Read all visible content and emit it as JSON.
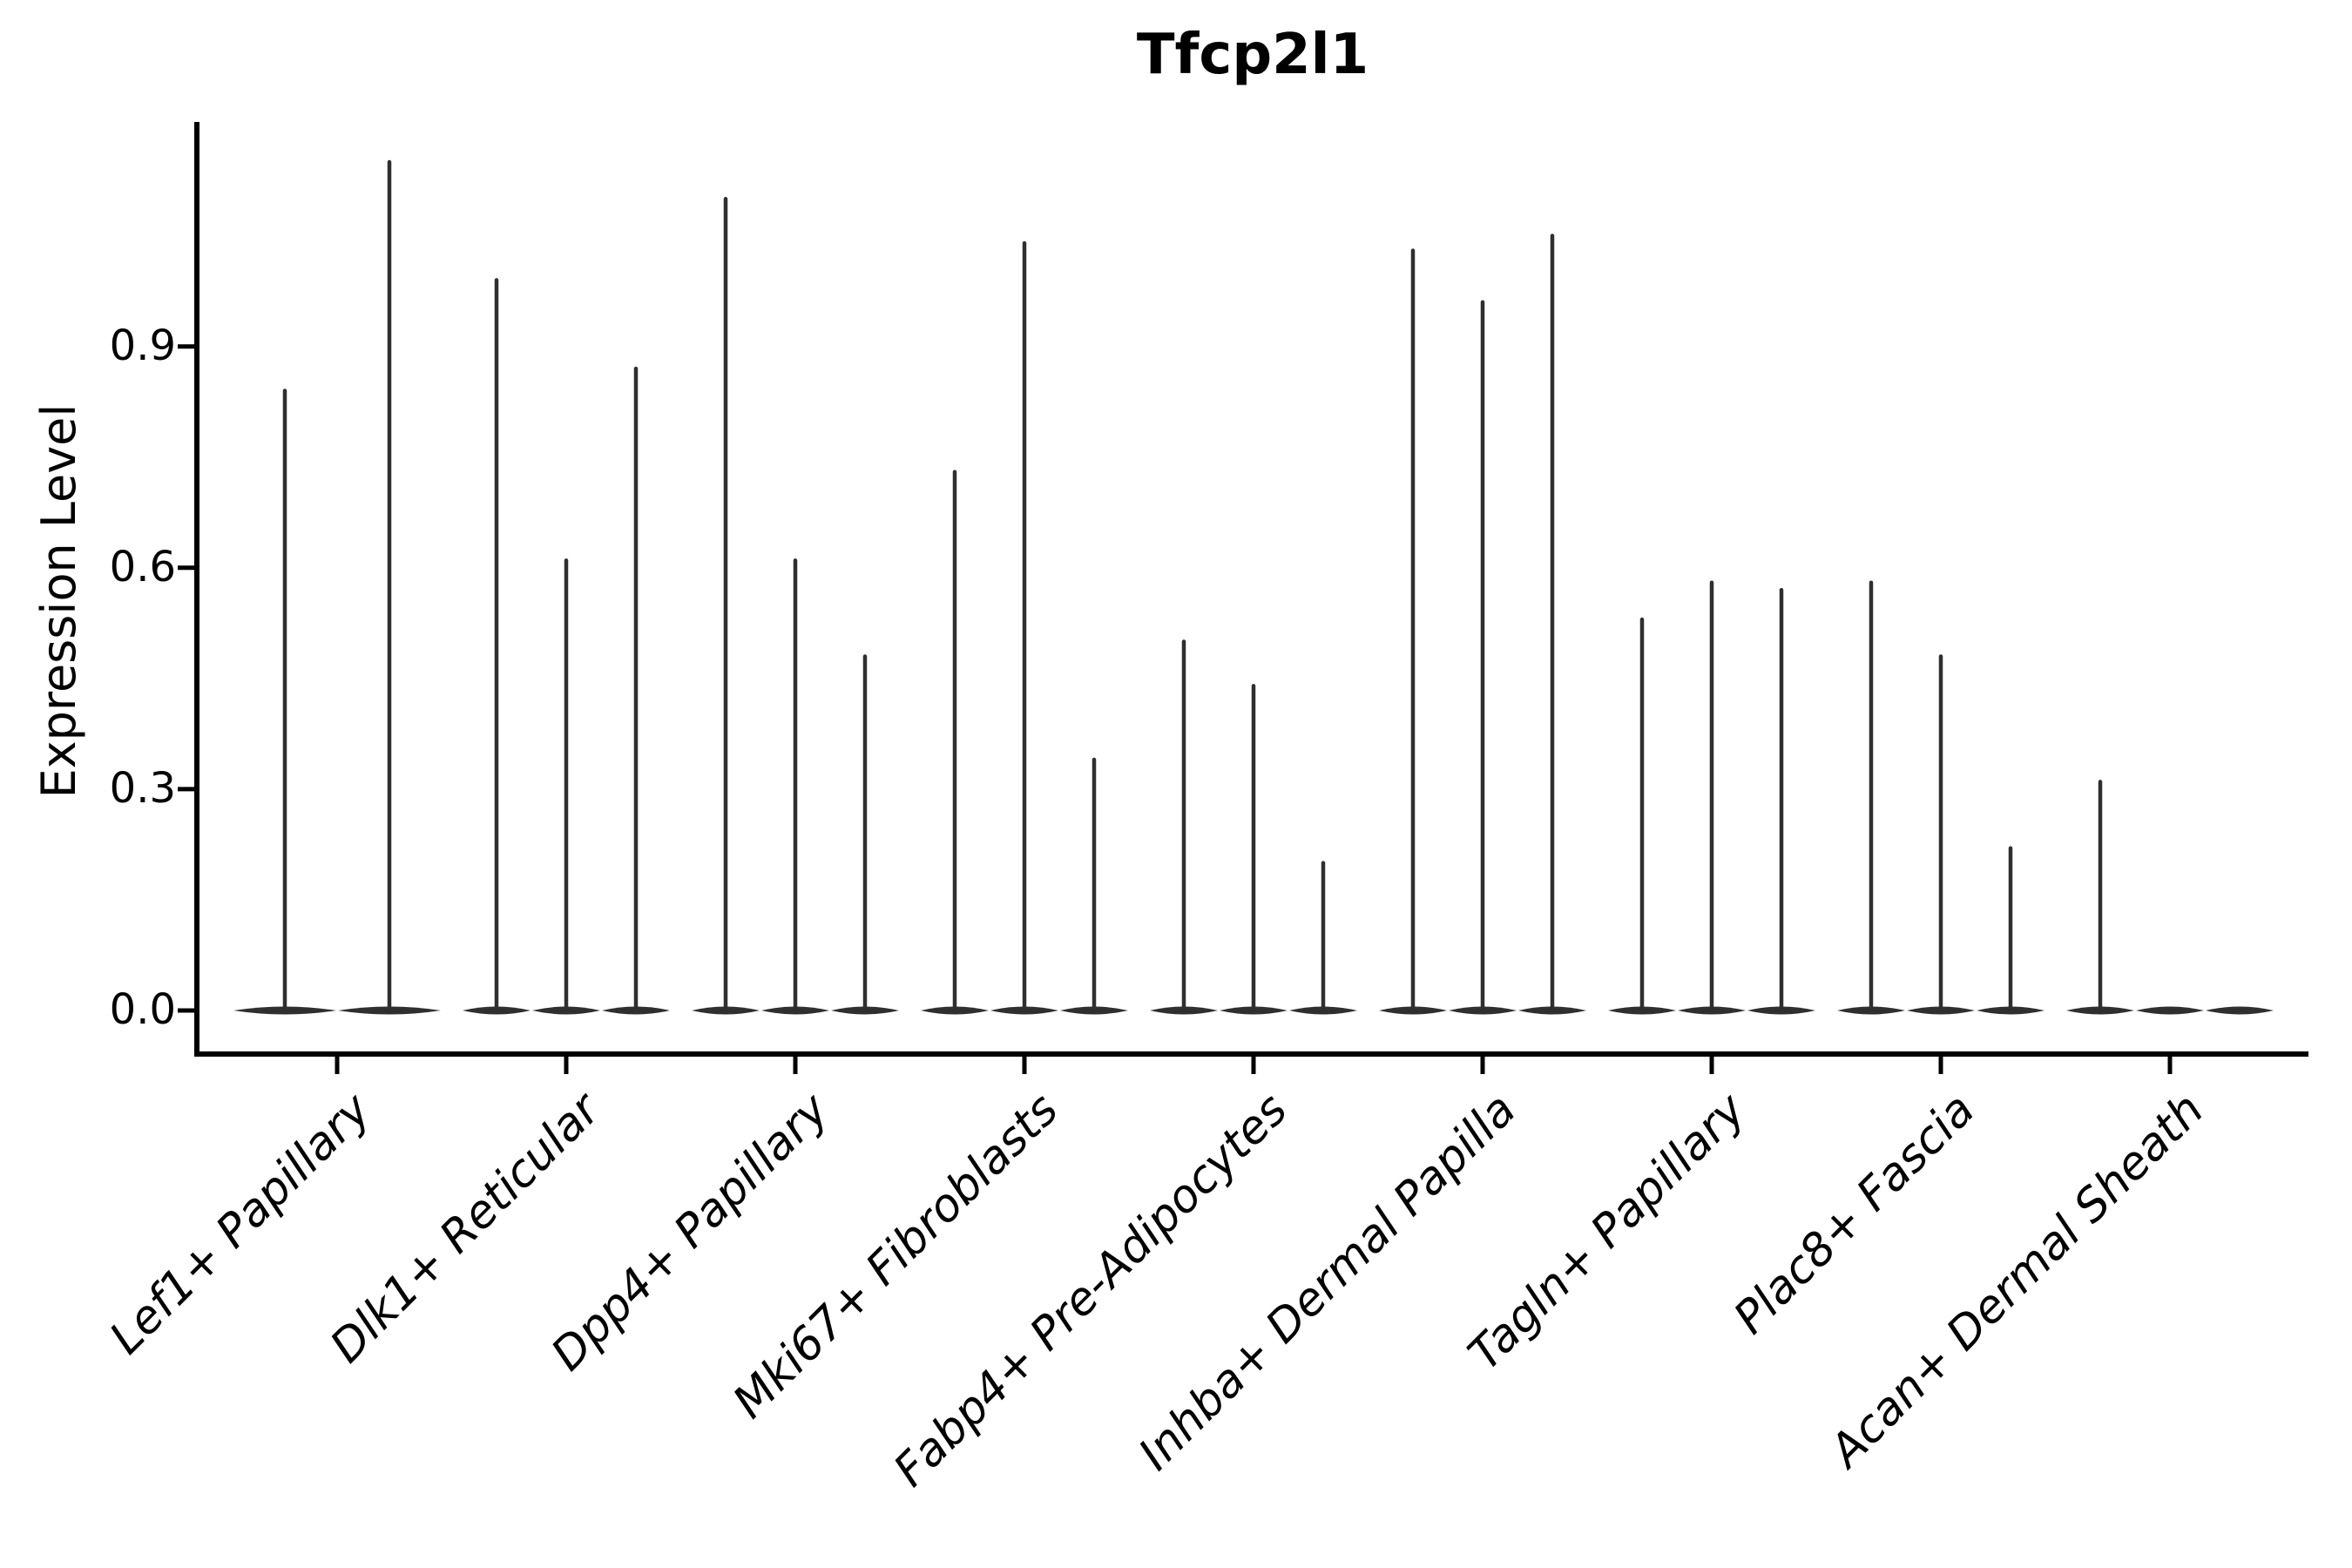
{
  "title": "Tfcp2l1",
  "y_axis": {
    "label": "Expression Level",
    "ticks": [
      "0.0",
      "0.3",
      "0.6",
      "0.9"
    ]
  },
  "chart_data": {
    "type": "violin",
    "title": "Tfcp2l1",
    "xlabel": "",
    "ylabel": "Expression Level",
    "ylim": [
      0,
      1.2
    ],
    "ytick_values": [
      0.0,
      0.3,
      0.6,
      0.9
    ],
    "grid": false,
    "legend": "none",
    "description": "Single-cell expression violin plot; each category shows narrow spike-shaped violins (density concentrated at 0 with a thin spike up to the maximum expression). Values listed are the spike maxima (violin tops) per sub-violin, left to right.",
    "categories": [
      "Lef1+ Papillary",
      "Dlk1+ Reticular",
      "Dpp4+ Papillary",
      "Mki67+ Fibroblasts",
      "Fabp4+ Pre-Adipocytes",
      "Inhba+ Dermal Papilla",
      "Tagln+ Papillary",
      "Plac8+ Fascia",
      "Acan+ Dermal Sheath"
    ],
    "groups": [
      {
        "category": "Lef1+ Papillary",
        "spike_maxima": [
          0.84,
          1.15
        ]
      },
      {
        "category": "Dlk1+ Reticular",
        "spike_maxima": [
          0.99,
          0.61,
          0.87
        ]
      },
      {
        "category": "Dpp4+ Papillary",
        "spike_maxima": [
          1.1,
          0.61,
          0.48
        ]
      },
      {
        "category": "Mki67+ Fibroblasts",
        "spike_maxima": [
          0.73,
          1.04,
          0.34
        ]
      },
      {
        "category": "Fabp4+ Pre-Adipocytes",
        "spike_maxima": [
          0.5,
          0.44,
          0.2
        ]
      },
      {
        "category": "Inhba+ Dermal Papilla",
        "spike_maxima": [
          1.03,
          0.96,
          1.05
        ]
      },
      {
        "category": "Tagln+ Papillary",
        "spike_maxima": [
          0.53,
          0.58,
          0.57
        ]
      },
      {
        "category": "Plac8+ Fascia",
        "spike_maxima": [
          0.58,
          0.48,
          0.22
        ]
      },
      {
        "category": "Acan+ Dermal Sheath",
        "spike_maxima": [
          0.31,
          0,
          0
        ]
      }
    ],
    "colors": {
      "violin": "#2f2f2f",
      "axis": "#000000",
      "text": "#000000",
      "background": "#ffffff"
    }
  }
}
